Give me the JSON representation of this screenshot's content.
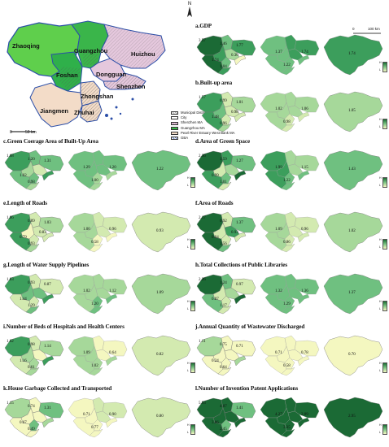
{
  "north": {
    "label": "N"
  },
  "overview": {
    "cities": [
      "Zhaoqing",
      "Guangzhou",
      "Huizhou",
      "Foshan",
      "Dongguan",
      "Shenzhen",
      "Jiangmen",
      "Zhongshan",
      "Zhuhai"
    ],
    "scale_left": "0",
    "scale_right": "50 km",
    "legend": [
      {
        "label": "Municipal District",
        "fill": "#ffffff",
        "hatch": "#999999"
      },
      {
        "label": "City",
        "fill": "#ffffff",
        "hatch": ""
      },
      {
        "label": "Shenzhen MA",
        "fill": "#e5c8dd",
        "hatch": "#b78aa8"
      },
      {
        "label": "Guangzhou MA",
        "fill": "#3ab54a",
        "hatch": ""
      },
      {
        "label": "Pearl River Estuary West Bank MA",
        "fill": "#f3dcc8",
        "hatch": ""
      },
      {
        "label": "GBA",
        "fill": "#ffffff",
        "hatch": "#2b4ea8"
      }
    ],
    "colors": {
      "zhaoqing": "#5fcf4c",
      "guangzhou": "#3ab54a",
      "huizhou": "#e5c8dd",
      "foshan": "#2fb04a",
      "dongguan": "#e5c8dd",
      "shenzhen": "#e5c8dd",
      "jiangmen": "#f3dcc8",
      "zhongshan": "#f3dcc8",
      "zhuhai": "#f3dcc8",
      "border": "#2b4ea8"
    }
  },
  "scale_small": {
    "left": "0",
    "right": "100 km"
  },
  "panels": [
    {
      "title": "a.GDP",
      "maps": [
        [
          "3.57",
          "1.46",
          "1.77",
          "1.74",
          "1.04",
          "0.30"
        ],
        [
          "1.37",
          "1.74",
          "1.22"
        ],
        [
          "1.74"
        ]
      ]
    },
    {
      "title": "b.Built-up area",
      "maps": [
        [
          "1.57",
          "0.99",
          "1.01",
          "1.48",
          "0.96",
          "0.98"
        ],
        [
          "1.02",
          "1.06",
          "0.98"
        ],
        [
          "1.05"
        ]
      ]
    },
    {
      "title": "c.Green Coerage Area of Built-Up Area",
      "maps": [
        [
          "1.68",
          "1.20",
          "1.31",
          "1.02",
          "0.98"
        ],
        [
          "1.29",
          "1.20",
          "1.00"
        ],
        [
          "1.22"
        ]
      ]
    },
    {
      "title": "d.Area of Green Space",
      "maps": [
        [
          "2.36",
          "1.59",
          "1.27",
          "0.99",
          "1.01"
        ],
        [
          "1.99",
          "1.15",
          "1.22"
        ],
        [
          "1.43"
        ]
      ]
    },
    {
      "title": "e.Length of Roads",
      "maps": [
        [
          "1.86",
          "0.89",
          "1.03",
          "0.79",
          "0.93",
          "0.83"
        ],
        [
          "1.00",
          "0.96",
          "0.58"
        ],
        [
          "0.93"
        ]
      ]
    },
    {
      "title": "f.Area of Roads",
      "maps": [
        [
          "2.17",
          "0.92",
          "1.37",
          "0.84",
          "1.56",
          "0.93"
        ],
        [
          "1.09",
          "0.96",
          "0.86"
        ],
        [
          "1.02"
        ]
      ]
    },
    {
      "title": "g.Length of Water Supply Pipelines",
      "maps": [
        [
          "1.83",
          "0.93",
          "0.87",
          "1.44",
          "1.29"
        ],
        [
          "1.02",
          "1.12",
          "1.20"
        ],
        [
          "1.09"
        ]
      ]
    },
    {
      "title": "h.Total Collections of Public Libraries",
      "maps": [
        [
          "2.26",
          "1.24",
          "0.97",
          "0.87",
          "1.17"
        ],
        [
          "1.32",
          "1.36",
          "1.29"
        ],
        [
          "1.37"
        ]
      ]
    },
    {
      "title": "i.Number of Beds of Hospitals and Health Centers",
      "maps": [
        [
          "1.62",
          "0.98",
          "1.14",
          "1.16",
          "0.61"
        ],
        [
          "1.09",
          "0.64",
          "1.02"
        ],
        [
          "0.82"
        ]
      ]
    },
    {
      "title": "j.Annual Quantity of Wastewater Discharged",
      "maps": [
        [
          "1.11",
          "0.75",
          "0.71",
          "0.24",
          "0.64"
        ],
        [
          "0.71",
          "0.78",
          "0.58"
        ],
        [
          "0.70"
        ]
      ]
    },
    {
      "title": "k.House Garbage Collected and Transported",
      "maps": [
        [
          "1.15",
          "0.74",
          "1.31",
          "0.67",
          "0.49"
        ],
        [
          "0.71",
          "0.90",
          "0.77"
        ],
        [
          "0.80"
        ]
      ]
    },
    {
      "title": "l.Number of Invention Patent Applications",
      "maps": [
        [
          "5.93",
          "4.07",
          "1.41",
          "3.86",
          "2.45"
        ],
        [
          "4.27",
          "2.09",
          "3.35"
        ],
        [
          "2.95"
        ]
      ]
    }
  ],
  "gradient": {
    "high": "H",
    "low": "L"
  },
  "map_colors": [
    "#f4f7c0",
    "#d3eab0",
    "#a6d89a",
    "#6fc080",
    "#3c9e5c",
    "#1b6a35"
  ]
}
